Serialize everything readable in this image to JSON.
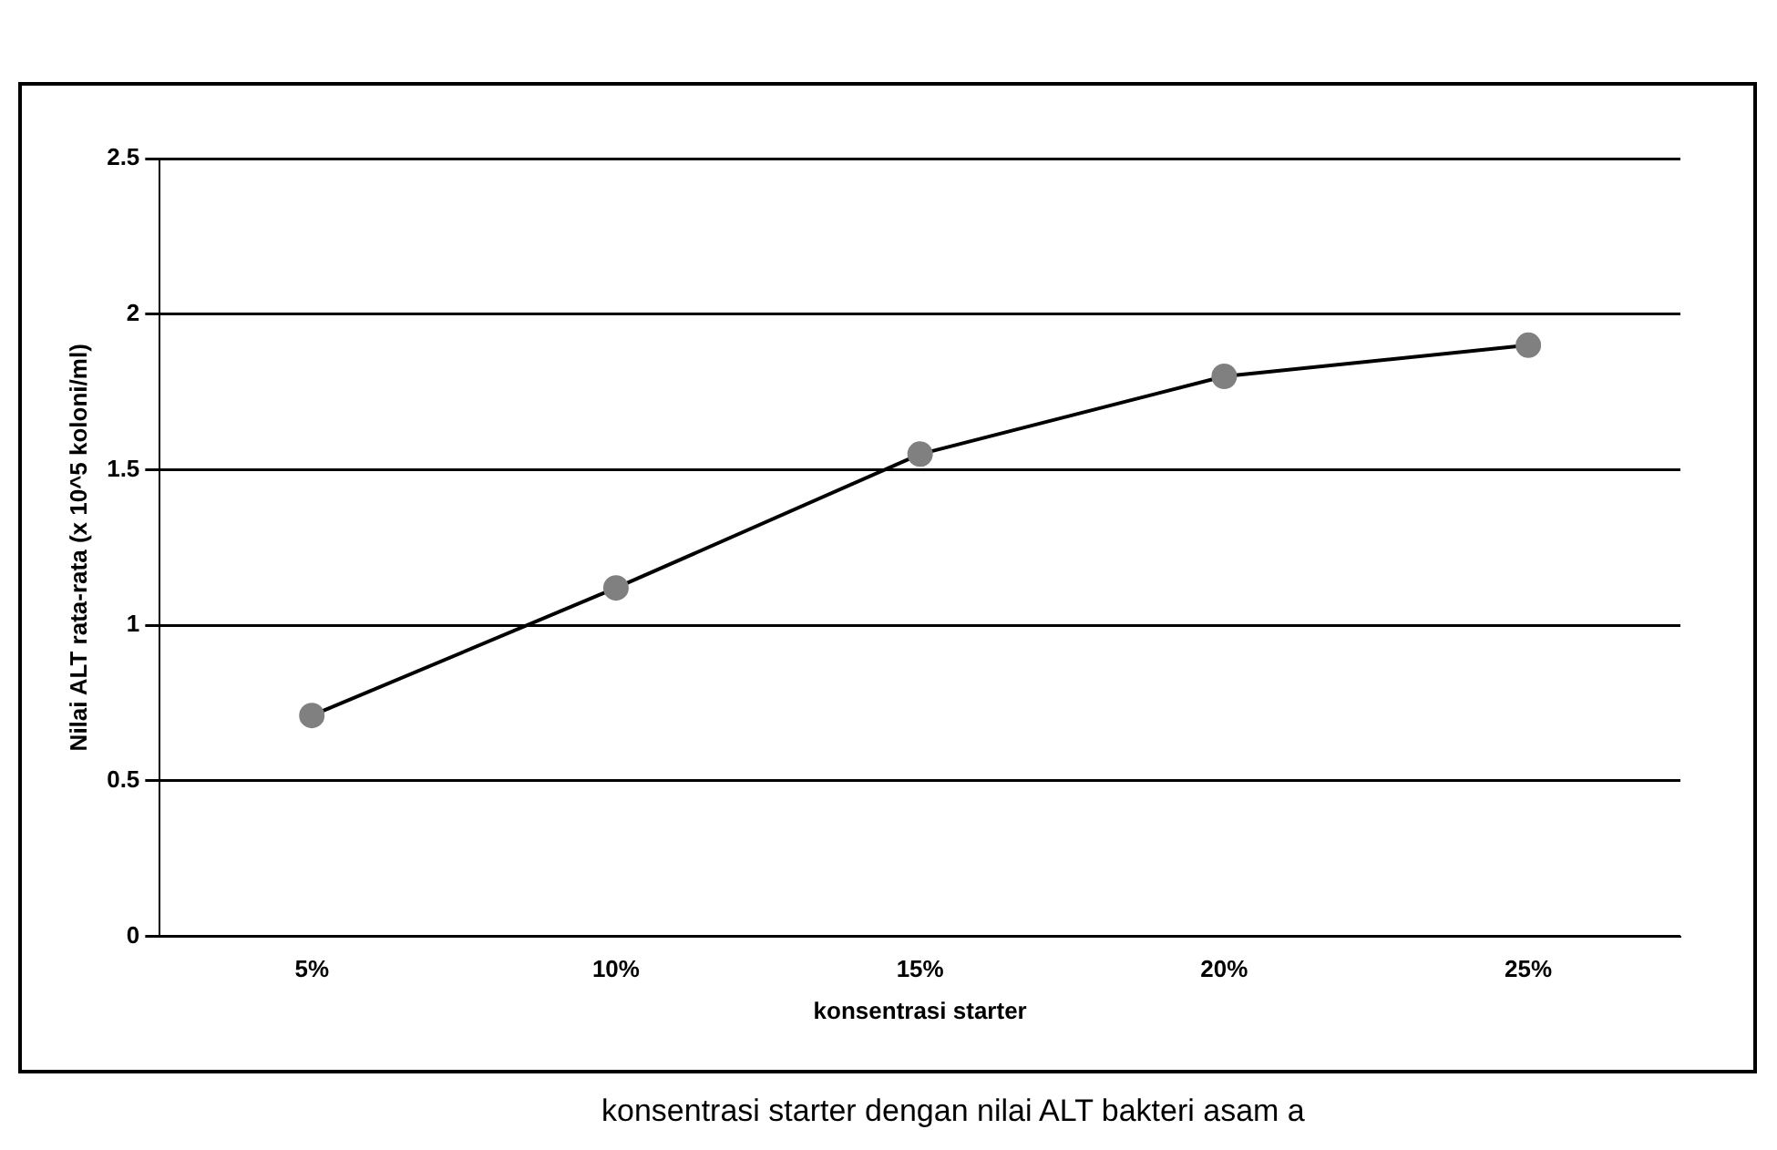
{
  "chart_data": {
    "type": "line",
    "xlabel": "konsentrasi starter",
    "ylabel": "Nilai ALT rata-rata (x 10^5 koloni/ml)",
    "categories": [
      "5%",
      "10%",
      "15%",
      "20%",
      "25%"
    ],
    "series": [
      {
        "color": "#000000",
        "values": [
          0.71,
          1.12,
          1.55,
          1.8,
          1.9
        ]
      }
    ],
    "ylim": [
      0,
      2.5
    ],
    "yticks": [
      0,
      0.5,
      1,
      1.5,
      2,
      2.5
    ],
    "grid": "y",
    "legend": false,
    "marker": "circle",
    "line_style": "solid",
    "annotations": [
      "konsentrasi starter dengan nilai ALT bakteri asam a"
    ]
  }
}
